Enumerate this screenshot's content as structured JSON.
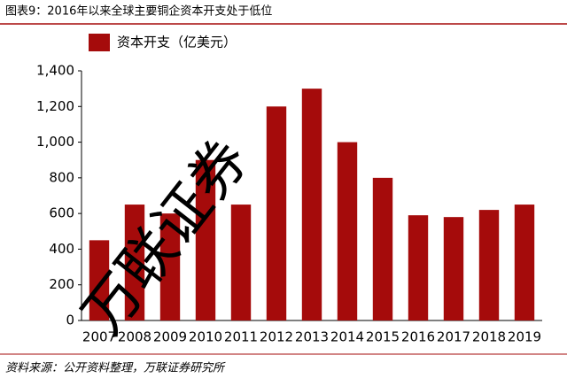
{
  "chart_data": {
    "type": "bar",
    "title": "图表9：2016年以来全球主要铜企资本开支处于低位",
    "legend_label": "资本开支（亿美元）",
    "categories": [
      "2007",
      "2008",
      "2009",
      "2010",
      "2011",
      "2012",
      "2013",
      "2014",
      "2015",
      "2016",
      "2017",
      "2018",
      "2019"
    ],
    "values": [
      450,
      650,
      600,
      900,
      650,
      1200,
      1300,
      1000,
      800,
      590,
      580,
      620,
      650
    ],
    "color": "#a50b0b",
    "ylim": [
      0,
      1400
    ],
    "yticks": [
      0,
      200,
      400,
      600,
      800,
      {
        "value": 1000,
        "label": "1,000"
      },
      {
        "value": 1200,
        "label": "1,200"
      },
      {
        "value": 1400,
        "label": "1,400"
      }
    ],
    "grid": false,
    "source": "资料来源：公开资料整理，万联证券研究所",
    "watermark": "万联证券"
  }
}
